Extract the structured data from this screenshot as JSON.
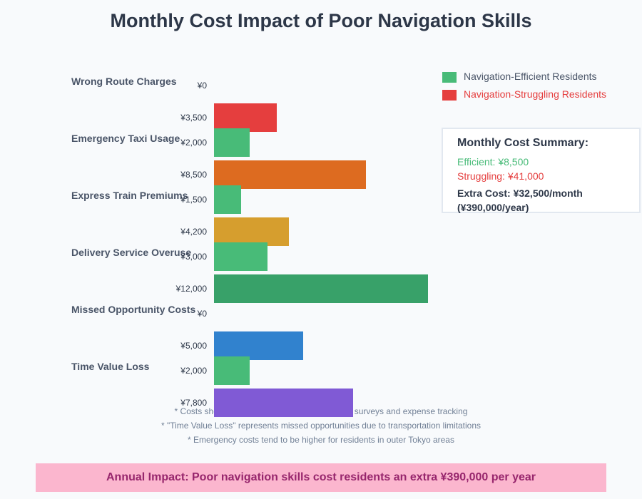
{
  "title": "Monthly Cost Impact of Poor Navigation Skills",
  "chart_data": {
    "type": "bar",
    "orientation": "horizontal",
    "title": "Monthly Cost Impact of Poor Navigation Skills",
    "categories": [
      "Wrong Route Charges",
      "Emergency Taxi Usage",
      "Express Train Premiums",
      "Delivery Service Overuse",
      "Missed Opportunity Costs",
      "Time Value Loss"
    ],
    "series": [
      {
        "name": "Navigation-Efficient Residents",
        "values": [
          0,
          2000,
          1500,
          3000,
          0,
          2000
        ],
        "labels": [
          "¥0",
          "¥2,000",
          "¥1,500",
          "¥3,000",
          "¥0",
          "¥2,000"
        ],
        "color": "#48bb78"
      },
      {
        "name": "Navigation-Struggling Residents",
        "values": [
          3500,
          8500,
          4200,
          12000,
          5000,
          7800
        ],
        "labels": [
          "¥3,500",
          "¥8,500",
          "¥4,200",
          "¥12,000",
          "¥5,000",
          "¥7,800"
        ],
        "colors": [
          "#e53e3e",
          "#dd6b20",
          "#d69e2e",
          "#38a169",
          "#3182ce",
          "#805ad5"
        ]
      }
    ],
    "xlim": [
      0,
      12000
    ],
    "legend": "top-right"
  },
  "legend": {
    "efficient": "Navigation-Efficient Residents",
    "struggling": "Navigation-Struggling Residents",
    "efficient_color": "#48bb78",
    "struggling_color": "#e53e3e"
  },
  "summary": {
    "heading": "Monthly Cost Summary:",
    "efficient": "Efficient: ¥8,500",
    "struggling": "Struggling: ¥41,000",
    "extra": "Extra Cost: ¥32,500/month",
    "yearly": "(¥390,000/year)"
  },
  "notes": [
    "* Costs shown are averages based on resident surveys and expense tracking",
    "* \"Time Value Loss\" represents missed opportunities due to transportation limitations",
    "* Emergency costs tend to be higher for residents in outer Tokyo areas"
  ],
  "banner": "Annual Impact: Poor navigation skills cost residents an extra ¥390,000 per year"
}
